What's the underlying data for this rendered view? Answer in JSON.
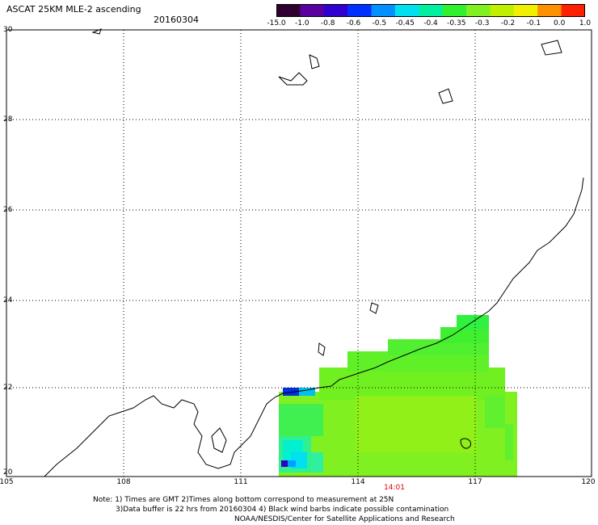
{
  "header": {
    "title": "ASCAT 25KM MLE-2 ascending",
    "date": "20160304"
  },
  "colorbar": {
    "labels": [
      "-15.0",
      "-1.0",
      "-0.8",
      "-0.6",
      "-0.5",
      "-0.45",
      "-0.4",
      "-0.35",
      "-0.3",
      "-0.2",
      "-0.1",
      "0.0",
      "1.0"
    ],
    "colors": [
      "#300030",
      "#5a00a0",
      "#3000d0",
      "#0030ff",
      "#0090ff",
      "#00e0f0",
      "#00f0a0",
      "#30f030",
      "#80f020",
      "#c0f000",
      "#f0f000",
      "#ff9000",
      "#ff2000"
    ]
  },
  "map": {
    "lon_ticks": [
      "105",
      "108",
      "111",
      "114",
      "117",
      "120"
    ],
    "lat_ticks": [
      "30",
      "28",
      "26",
      "24",
      "22",
      "20"
    ],
    "time_label": "14:01"
  },
  "notes": {
    "line1": "Note: 1) Times are GMT 2)Times along bottom correspond to measurement at 25N",
    "line2": "3)Data buffer is 22 hrs from 20160304 4) Black wind barbs indicate possible contamination",
    "line3": "NOAA/NESDIS/Center for Satellite Applications and Research"
  }
}
